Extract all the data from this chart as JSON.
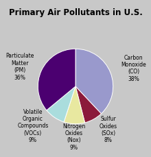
{
  "title": "Primary Air Pollutants in U.S.",
  "slices": [
    {
      "label": "Carbon\nMonoxide\n(CO)\n38%",
      "value": 38,
      "color": "#9999CC"
    },
    {
      "label": "Sulfur\nOxides\n(SOx)\n8%",
      "value": 8,
      "color": "#8B1A3A"
    },
    {
      "label": "Nitrogen\nOxides\n(Nox)\n9%",
      "value": 9,
      "color": "#E8E8A0"
    },
    {
      "label": "Volatile\nOrganic\nCompounds\n(VOCs)\n9%",
      "value": 9,
      "color": "#AADDDD"
    },
    {
      "label": "Particulate\nMatter\n(PM)\n36%",
      "value": 36,
      "color": "#4B0070"
    }
  ],
  "title_fontsize": 8.5,
  "label_fontsize": 5.5,
  "background_color": "#c8c8c8",
  "startangle": 90
}
